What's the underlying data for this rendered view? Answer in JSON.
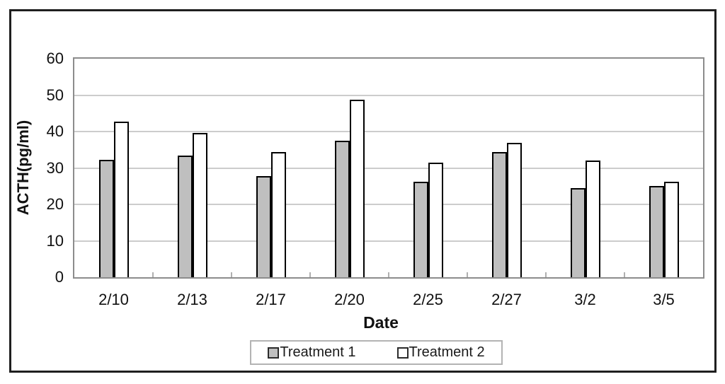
{
  "chart_data": {
    "type": "bar",
    "title": "",
    "xlabel": "Date",
    "ylabel": "ACTH(pg/ml)",
    "categories": [
      "2/10",
      "2/13",
      "2/17",
      "2/20",
      "2/25",
      "2/27",
      "3/2",
      "3/5"
    ],
    "series": [
      {
        "name": "Treatment 1",
        "color": "#bfbfbf",
        "values": [
          32.3,
          33.4,
          27.8,
          37.4,
          26.2,
          34.4,
          24.5,
          25.1
        ]
      },
      {
        "name": "Treatment 2",
        "color": "#ffffff",
        "values": [
          42.8,
          39.6,
          34.4,
          48.7,
          31.5,
          36.9,
          32.0,
          26.2
        ]
      }
    ],
    "ylim": [
      0,
      60
    ],
    "ytick_step": 10,
    "grid": "horizontal",
    "legend_position": "bottom",
    "colors": {
      "bar_border": "#000000",
      "gridline": "#cccccc",
      "plot_border": "#8c8c8c",
      "figure_border": "#1f1f1f",
      "text": "#111111"
    }
  }
}
